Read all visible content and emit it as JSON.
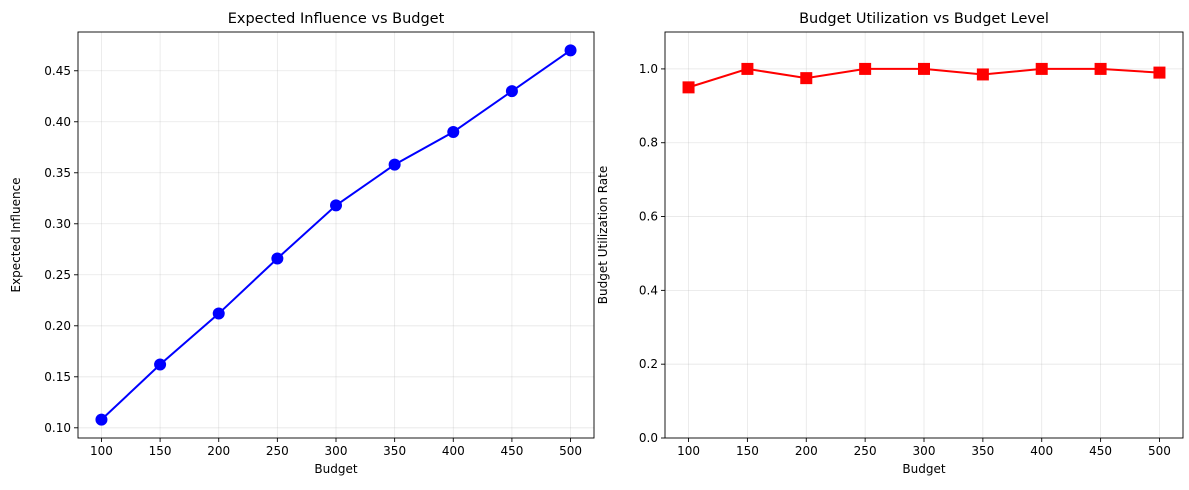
{
  "chart_data": [
    {
      "type": "line",
      "title": "Expected Influence vs Budget",
      "xlabel": "Budget",
      "ylabel": "Expected Influence",
      "x": [
        100,
        150,
        200,
        250,
        300,
        350,
        400,
        450,
        500
      ],
      "series": [
        {
          "values": [
            0.108,
            0.162,
            0.212,
            0.266,
            0.318,
            0.358,
            0.39,
            0.43,
            0.47
          ],
          "color": "#0000ff",
          "marker": "circle"
        }
      ],
      "xticks": [
        100,
        150,
        200,
        250,
        300,
        350,
        400,
        450,
        500
      ],
      "yticks": [
        0.1,
        0.15,
        0.2,
        0.25,
        0.3,
        0.35,
        0.4,
        0.45
      ],
      "ytick_labels": [
        "0.10",
        "0.15",
        "0.20",
        "0.25",
        "0.30",
        "0.35",
        "0.40",
        "0.45"
      ],
      "xlim": [
        80,
        520
      ],
      "ylim": [
        0.09,
        0.488
      ],
      "grid": true
    },
    {
      "type": "line",
      "title": "Budget Utilization vs Budget Level",
      "xlabel": "Budget",
      "ylabel": "Budget Utilization Rate",
      "x": [
        100,
        150,
        200,
        250,
        300,
        350,
        400,
        450,
        500
      ],
      "series": [
        {
          "values": [
            0.95,
            1.0,
            0.975,
            1.0,
            1.0,
            0.985,
            1.0,
            1.0,
            0.99
          ],
          "color": "#ff0000",
          "marker": "square"
        }
      ],
      "xticks": [
        100,
        150,
        200,
        250,
        300,
        350,
        400,
        450,
        500
      ],
      "yticks": [
        0.0,
        0.2,
        0.4,
        0.6,
        0.8,
        1.0
      ],
      "ytick_labels": [
        "0.0",
        "0.2",
        "0.4",
        "0.6",
        "0.8",
        "1.0"
      ],
      "xlim": [
        80,
        520
      ],
      "ylim": [
        0.0,
        1.1
      ],
      "grid": true
    }
  ]
}
